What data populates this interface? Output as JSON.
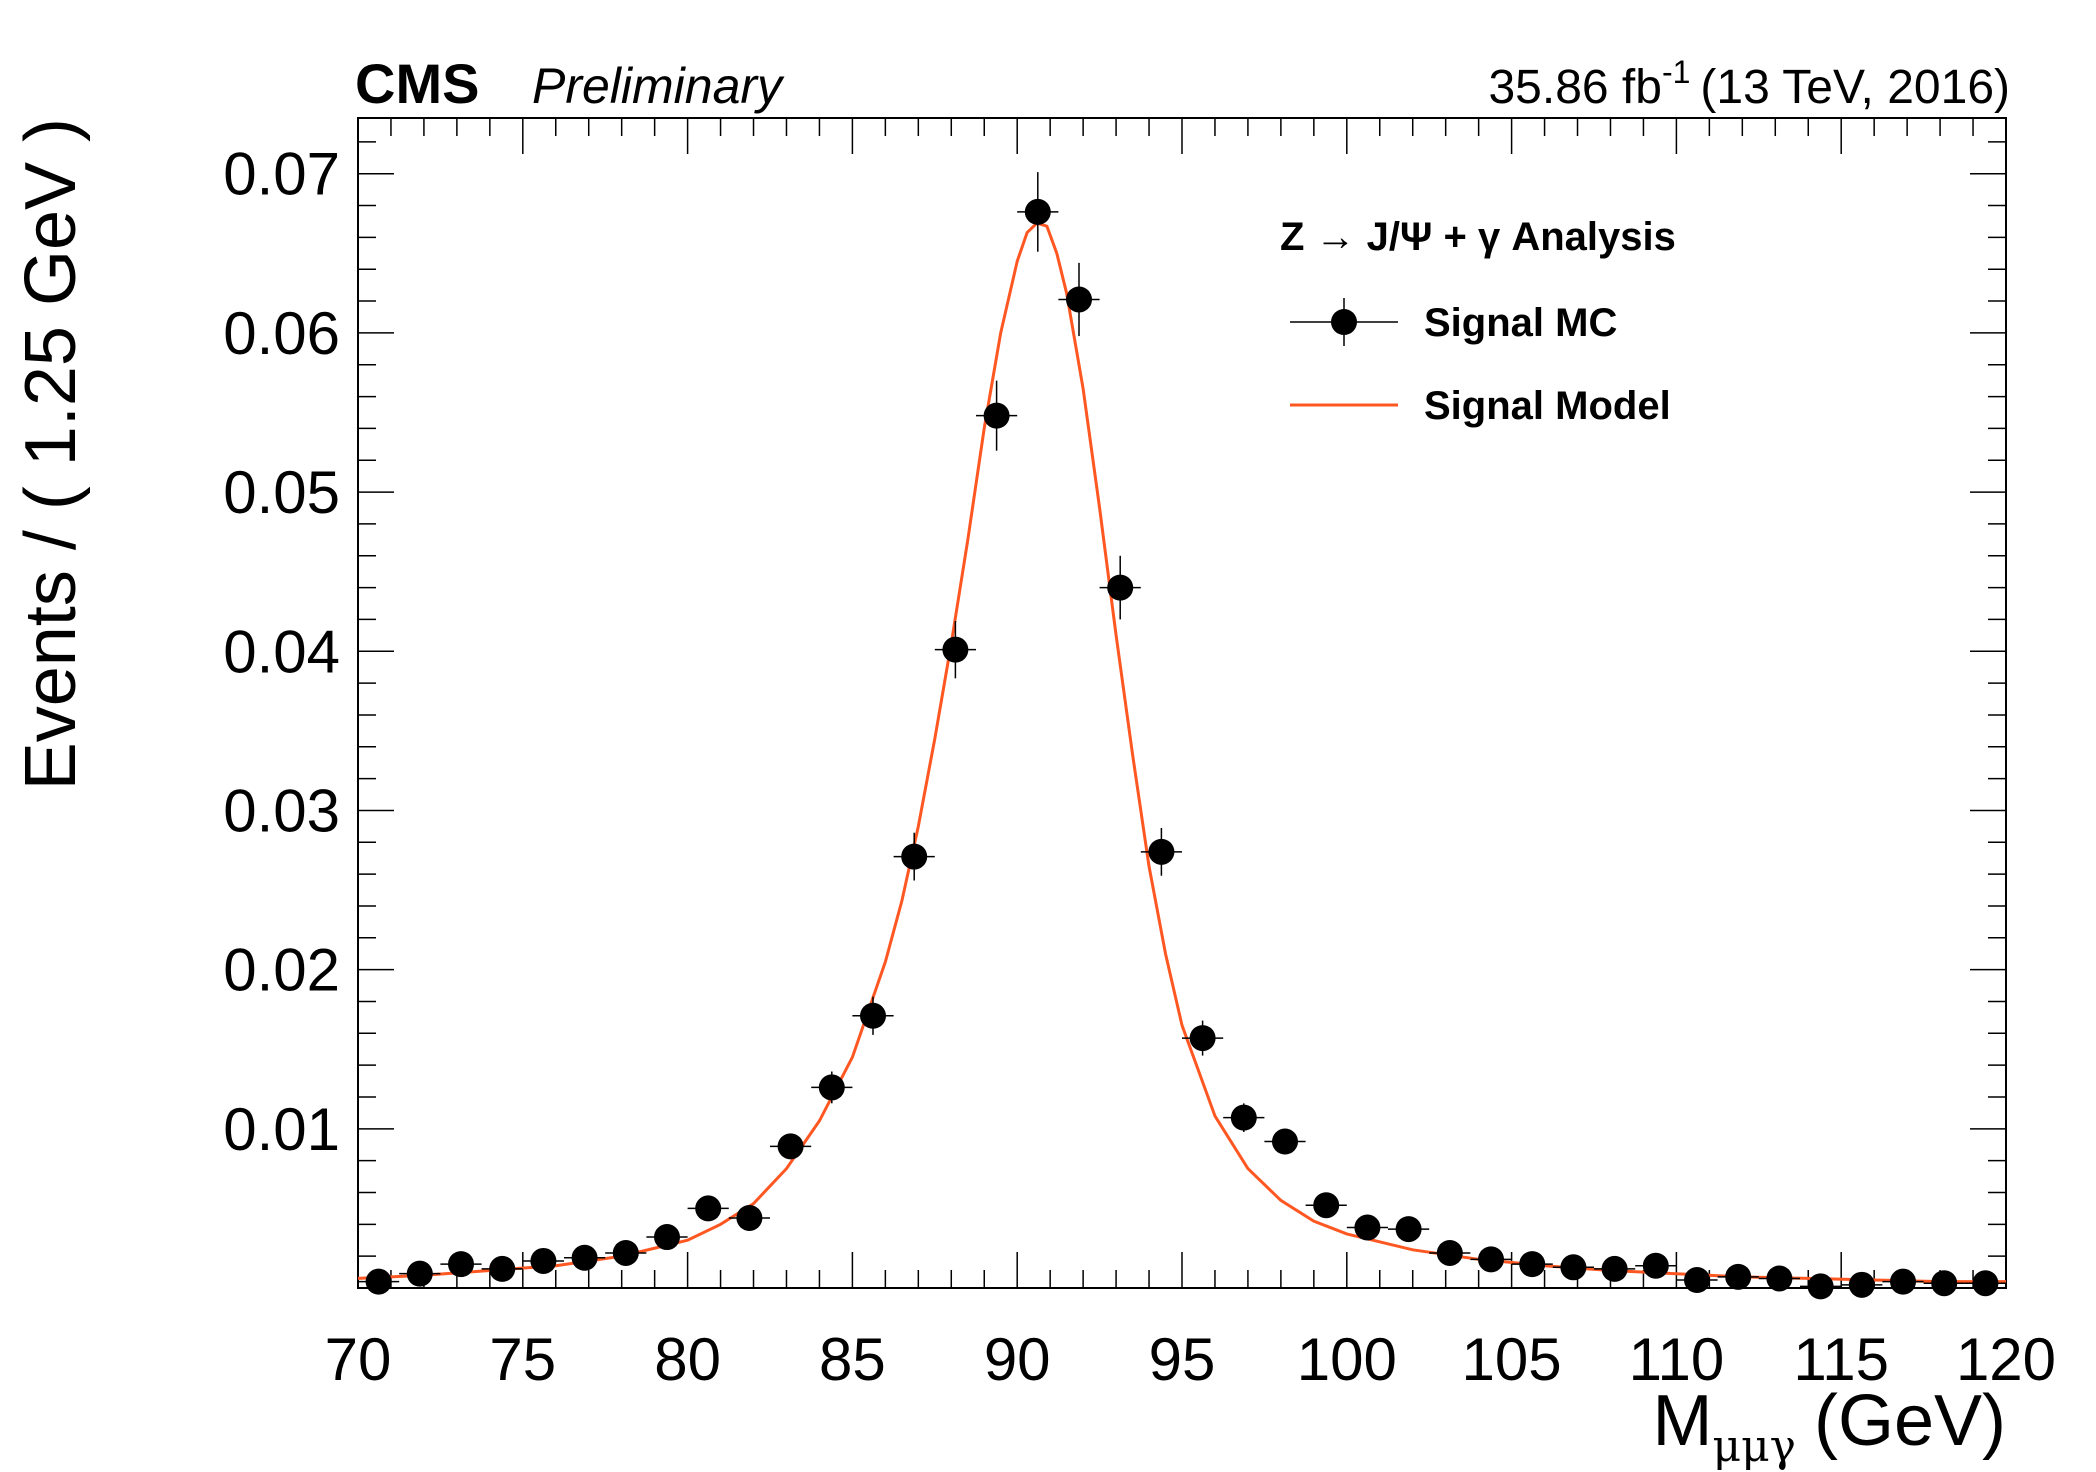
{
  "header": {
    "experiment": "CMS",
    "status": "Preliminary",
    "lumi_value": "35.86 fb",
    "lumi_exponent": "-1",
    "lumi_detail": "(13 TeV, 2016)"
  },
  "legend": {
    "title": "Z → J/Ψ + γ Analysis",
    "entries": [
      "Signal MC",
      "Signal Model"
    ]
  },
  "colors": {
    "model_line": "#ff5722",
    "markers": "#000000"
  },
  "chart_data": {
    "type": "scatter",
    "xlabel_main": "M",
    "xlabel_sub": "μμγ",
    "xlabel_unit": "(GeV)",
    "ylabel": "Events / ( 1.25 GeV )",
    "xlim": [
      70,
      120
    ],
    "ylim": [
      0,
      0.0735
    ],
    "xticks": [
      70,
      75,
      80,
      85,
      90,
      95,
      100,
      105,
      110,
      115,
      120
    ],
    "xtick_labels": [
      "70",
      "75",
      "80",
      "85",
      "90",
      "95",
      "100",
      "105",
      "110",
      "115",
      "120"
    ],
    "yticks": [
      0.01,
      0.02,
      0.03,
      0.04,
      0.05,
      0.06,
      0.07
    ],
    "ytick_labels": [
      "0.01",
      "0.02",
      "0.03",
      "0.04",
      "0.05",
      "0.06",
      "0.07"
    ],
    "legend_position": "top-right",
    "grid": false,
    "series": [
      {
        "name": "Signal MC",
        "kind": "points",
        "x_bin_half_width": 0.625,
        "x": [
          70.625,
          71.875,
          73.125,
          74.375,
          75.625,
          76.875,
          78.125,
          79.375,
          80.625,
          81.875,
          83.125,
          84.375,
          85.625,
          86.875,
          88.125,
          89.375,
          90.625,
          91.875,
          93.125,
          94.375,
          95.625,
          96.875,
          98.125,
          99.375,
          100.625,
          101.875,
          103.125,
          104.375,
          105.625,
          106.875,
          108.125,
          109.375,
          110.625,
          111.875,
          113.125,
          114.375,
          115.625,
          116.875,
          118.125,
          119.375
        ],
        "y": [
          0.0004,
          0.0009,
          0.0015,
          0.0012,
          0.0017,
          0.0019,
          0.0022,
          0.0032,
          0.005,
          0.0044,
          0.0089,
          0.0126,
          0.0171,
          0.0271,
          0.0401,
          0.0548,
          0.0676,
          0.0621,
          0.044,
          0.0274,
          0.0157,
          0.0107,
          0.0092,
          0.0052,
          0.0038,
          0.0037,
          0.0022,
          0.0018,
          0.0015,
          0.0013,
          0.0012,
          0.0014,
          0.0005,
          0.0007,
          0.0006,
          0.0001,
          0.0002,
          0.0004,
          0.0003,
          0.0003
        ],
        "yerr": [
          0.0002,
          0.0003,
          0.0004,
          0.0003,
          0.0004,
          0.0004,
          0.0004,
          0.0005,
          0.0006,
          0.0006,
          0.0008,
          0.001,
          0.0012,
          0.0015,
          0.0018,
          0.0022,
          0.0025,
          0.0023,
          0.002,
          0.0015,
          0.0011,
          0.0009,
          0.0008,
          0.0006,
          0.0005,
          0.0005,
          0.0004,
          0.0004,
          0.0004,
          0.0003,
          0.0003,
          0.0004,
          0.0002,
          0.0002,
          0.0002,
          0.0001,
          0.0001,
          0.0002,
          0.0001,
          0.0001
        ]
      },
      {
        "name": "Signal Model",
        "kind": "line",
        "x": [
          70,
          72,
          74,
          76,
          78,
          80,
          81,
          82,
          83,
          84,
          85,
          86,
          86.5,
          87,
          87.5,
          88,
          88.5,
          89,
          89.5,
          90,
          90.3,
          90.6,
          90.9,
          91.2,
          91.5,
          92,
          92.5,
          93,
          93.5,
          94,
          94.5,
          95,
          96,
          97,
          98,
          99,
          100,
          102,
          104,
          106,
          108,
          110,
          112,
          114,
          116,
          118,
          120
        ],
        "y": [
          0.0006,
          0.0008,
          0.0011,
          0.0014,
          0.002,
          0.003,
          0.004,
          0.0053,
          0.0075,
          0.0105,
          0.0145,
          0.0205,
          0.0243,
          0.029,
          0.0345,
          0.0405,
          0.047,
          0.054,
          0.06,
          0.0645,
          0.0663,
          0.0669,
          0.0667,
          0.065,
          0.0625,
          0.0565,
          0.049,
          0.041,
          0.0335,
          0.0265,
          0.021,
          0.0165,
          0.0108,
          0.0075,
          0.0055,
          0.0042,
          0.0034,
          0.0024,
          0.0018,
          0.0014,
          0.0011,
          0.0009,
          0.0007,
          0.0006,
          0.0005,
          0.0004,
          0.0004
        ]
      }
    ]
  }
}
